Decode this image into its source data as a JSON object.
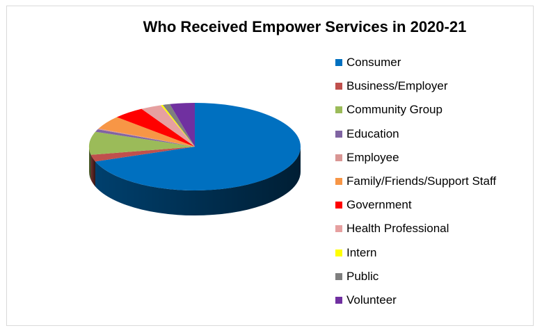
{
  "chart_data": {
    "type": "pie",
    "style": "3d",
    "title": "Who Received Empower Services in 2020-21",
    "legend_position": "right",
    "slices": [
      {
        "label": "Consumer",
        "value": 69.5,
        "color": "#0070c0"
      },
      {
        "label": "Business/Employer",
        "value": 2.5,
        "color": "#c0504d"
      },
      {
        "label": "Community Group",
        "value": 8.5,
        "color": "#9bbb59"
      },
      {
        "label": "Education",
        "value": 1.0,
        "color": "#8064a2"
      },
      {
        "label": "Employee",
        "value": 0.3,
        "color": "#d99694"
      },
      {
        "label": "Family/Friends/Support Staff",
        "value": 5.0,
        "color": "#f79646"
      },
      {
        "label": "Government",
        "value": 4.8,
        "color": "#ff0000"
      },
      {
        "label": "Health Professional",
        "value": 3.2,
        "color": "#e6a0a0"
      },
      {
        "label": "Intern",
        "value": 0.3,
        "color": "#ffff00"
      },
      {
        "label": "Public",
        "value": 1.1,
        "color": "#7f7f7f"
      },
      {
        "label": "Volunteer",
        "value": 3.8,
        "color": "#7030a0"
      }
    ]
  }
}
